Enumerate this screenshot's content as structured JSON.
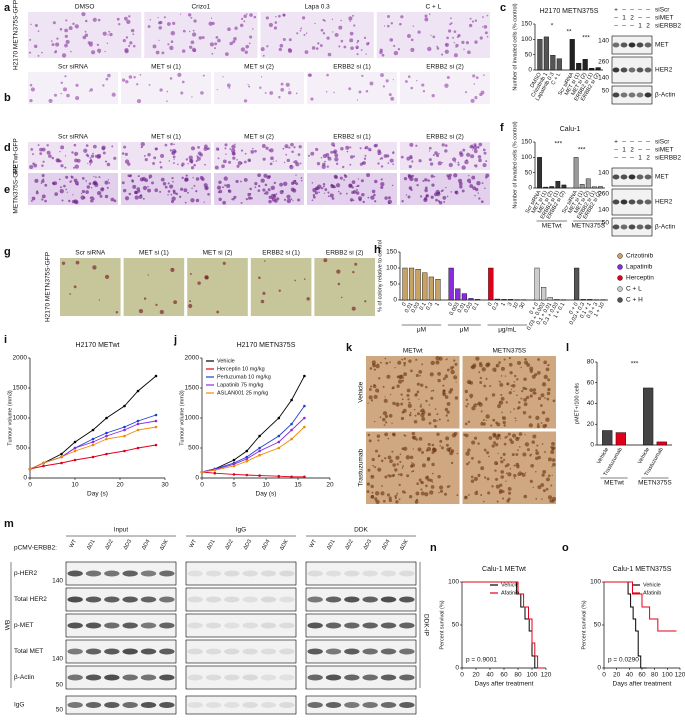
{
  "image_panels": [
    {
      "letter": "a",
      "labels": [
        "DMSO",
        "Crizo1",
        "Lapa 0.3",
        "C + L"
      ],
      "side": "H2170 METN375S-GFP"
    },
    {
      "letter": "b",
      "labels": [
        "Scr siRNA",
        "MET si (1)",
        "MET si (2)",
        "ERBB2 si (1)",
        "ERBB2 si (2)"
      ]
    },
    {
      "letter": "d",
      "labels": [
        "Scr siRNA",
        "MET si (1)",
        "MET si (2)",
        "ERBB2 si (1)",
        "ERBB2 si (2)"
      ],
      "side": "METwt-GFP"
    },
    {
      "letter": "e",
      "side": "METN375S-GFP"
    },
    {
      "letter": "g",
      "labels": [
        "Scr siRNA",
        "MET si (1)",
        "MET si (2)",
        "ERBB2 si (1)",
        "ERBB2 si (2)"
      ],
      "side": "H2170 METN375S-GFP"
    },
    {
      "letter": "k",
      "labels": [
        "METwt",
        "METN375S"
      ],
      "rows": [
        "Vehicle",
        "Trastuzumab"
      ]
    }
  ],
  "blots": [
    {
      "head": [
        {
          "label": "siScr",
          "lanes": [
            "+",
            "–",
            "–",
            "–",
            "–"
          ]
        },
        {
          "label": "siMET",
          "lanes": [
            "–",
            "1",
            "2",
            "–",
            "–"
          ]
        },
        {
          "label": "siERBB2",
          "lanes": [
            "–",
            "–",
            "–",
            "1",
            "2"
          ]
        }
      ],
      "bands": [
        {
          "name": "MET",
          "markers": [
            "140"
          ]
        },
        {
          "name": "HER2",
          "markers": [
            "260",
            "140"
          ]
        },
        {
          "name": "β-Actin",
          "markers": [
            "50"
          ]
        }
      ]
    },
    {
      "head": [
        {
          "label": "siScr",
          "lanes": [
            "+",
            "–",
            "–",
            "–",
            "–"
          ]
        },
        {
          "label": "siMET",
          "lanes": [
            "–",
            "1",
            "2",
            "–",
            "–"
          ]
        },
        {
          "label": "siERBB2",
          "lanes": [
            "–",
            "–",
            "–",
            "1",
            "2"
          ]
        }
      ],
      "bands": [
        {
          "name": "MET",
          "markers": [
            "140"
          ]
        },
        {
          "name": "HER2",
          "markers": [
            "260",
            "140"
          ]
        },
        {
          "name": "β-Actin",
          "markers": [
            "50"
          ]
        }
      ]
    }
  ],
  "blot_m": {
    "letter": "m",
    "header": "pCMV-ERBB2:",
    "groups": [
      "Input",
      "IgG",
      "DDK"
    ],
    "lanes": [
      "WT",
      "ΔD1",
      "ΔD2",
      "ΔD3",
      "ΔD4",
      "ΔDK"
    ],
    "bands": [
      {
        "name": "p-HER2",
        "markers": [
          "140"
        ]
      },
      {
        "name": "Total HER2",
        "markers": []
      },
      {
        "name": "p-MET",
        "markers": []
      },
      {
        "name": "Total MET",
        "markers": [
          "140"
        ]
      },
      {
        "name": "β-Actin",
        "markers": [
          "50"
        ]
      }
    ],
    "side": "WB",
    "ip": "DDK-IP",
    "bottom": {
      "name": "IgG",
      "markers": [
        "50"
      ]
    }
  },
  "chart_data": [
    {
      "type": "bar",
      "panel": "c",
      "title": "H2170 METN375S",
      "ylabel": "Number of invaded cells (% control)",
      "ylim": [
        0,
        150
      ],
      "yticks": [
        0,
        50,
        100,
        150
      ],
      "annotations": [
        "*",
        "**",
        "***"
      ],
      "groups": [
        {
          "color": "#555555",
          "categories": [
            "DMSO",
            "Crizotinib 1",
            "Lapatinib 0.3",
            "C + L"
          ],
          "values": [
            100,
            108,
            48,
            37
          ]
        },
        {
          "color": "#222222",
          "categories": [
            "Scr siRNA",
            "MET si (1)",
            "MET si (2)",
            "ERBB2 si (1)",
            "ERBB2 si (2)"
          ],
          "values": [
            100,
            22,
            35,
            6,
            8
          ]
        }
      ]
    },
    {
      "type": "bar",
      "panel": "f",
      "title": "Calu-1",
      "ylabel": "Number of invaded cells (% control)",
      "ylim": [
        0,
        150
      ],
      "yticks": [
        0,
        50,
        100,
        150
      ],
      "annotations": [
        "***",
        "***"
      ],
      "groups": [
        {
          "label": "METwt",
          "color": "#333333",
          "categories": [
            "Scr siRNA",
            "MET si (1)",
            "MET si (2)",
            "ERBB2 si (1)",
            "ERBB2 si (2)"
          ],
          "values": [
            100,
            3,
            5,
            22,
            10
          ]
        },
        {
          "label": "METN375S",
          "color": "#999999",
          "categories": [
            "Scr siRNA",
            "MET si (1)",
            "MET si (2)",
            "ERBB2 si (1)",
            "ERBB2 si (2)"
          ],
          "values": [
            100,
            12,
            30,
            4,
            5
          ]
        }
      ]
    },
    {
      "type": "bar",
      "panel": "h",
      "ylabel": "% of colony relative to control",
      "ylim": [
        0,
        150
      ],
      "yticks": [
        0,
        50,
        100,
        150
      ],
      "groups": [
        {
          "name": "Crizotinib",
          "label": "μM",
          "color": "#c8a165",
          "categories": [
            "0",
            "0.01",
            "0.03",
            "0.1",
            "0.3",
            "1"
          ],
          "values": [
            100,
            100,
            96,
            85,
            72,
            65
          ]
        },
        {
          "name": "Lapatinib",
          "label": "μM",
          "color": "#8a2be2",
          "categories": [
            "0",
            "0.003",
            "0.01",
            "0.03",
            "0.1"
          ],
          "values": [
            100,
            35,
            20,
            5,
            2
          ]
        },
        {
          "name": "Herceptin",
          "label": "μg/mL",
          "color": "#e0001a",
          "categories": [
            "0",
            "0.3",
            "1",
            "3",
            "10",
            "30"
          ],
          "values": [
            100,
            3,
            2,
            2,
            1,
            1
          ]
        },
        {
          "name": "C + L",
          "color": "#cccccc",
          "categories": [
            "0 + 0",
            "0.03 + 0.003",
            "0.1 + 0.01",
            "0.3 + 0.03",
            "1 + 0.1"
          ],
          "values": [
            100,
            40,
            8,
            2,
            1
          ]
        },
        {
          "name": "C + H",
          "color": "#555555",
          "categories": [
            "0 + 0",
            "0.03 + 0.3",
            "0.1 + 1",
            "0.3 + 3",
            "1 + 10"
          ],
          "values": [
            100,
            2,
            2,
            1,
            1
          ]
        }
      ]
    },
    {
      "type": "line",
      "panel": "i",
      "title": "H2170 METwt",
      "ylabel": "Tumour volume (mm3)",
      "xlabel": "Day (s)",
      "xlim": [
        0,
        30
      ],
      "xticks": [
        0,
        10,
        20,
        30
      ],
      "ylim": [
        0,
        2000
      ],
      "yticks": [
        0,
        500,
        1000,
        1500,
        2000
      ],
      "x": [
        0,
        3,
        7,
        10,
        14,
        17,
        21,
        24,
        28
      ],
      "series": [
        {
          "color": "#000000",
          "values": [
            150,
            250,
            400,
            600,
            800,
            1000,
            1200,
            1450,
            1700
          ]
        },
        {
          "color": "#e0001a",
          "values": [
            150,
            200,
            250,
            300,
            350,
            400,
            450,
            500,
            550
          ]
        },
        {
          "color": "#1f3fd6",
          "values": [
            150,
            250,
            350,
            500,
            650,
            750,
            850,
            950,
            1050
          ]
        },
        {
          "color": "#8a2be2",
          "values": [
            150,
            250,
            350,
            500,
            600,
            700,
            800,
            900,
            950
          ]
        },
        {
          "color": "#f08a00",
          "values": [
            150,
            250,
            350,
            450,
            550,
            650,
            700,
            800,
            850
          ]
        }
      ]
    },
    {
      "type": "line",
      "panel": "j",
      "title": "H2170 METN375S",
      "ylabel": "Tumour volume (mm3)",
      "xlabel": "Day (s)",
      "xlim": [
        0,
        20
      ],
      "xticks": [
        0,
        5,
        10,
        15,
        20
      ],
      "ylim": [
        0,
        2000
      ],
      "yticks": [
        0,
        500,
        1000,
        1500,
        2000
      ],
      "x": [
        0,
        2,
        5,
        7,
        9,
        12,
        14,
        16
      ],
      "series": [
        {
          "name": "Vehicle",
          "color": "#000000",
          "values": [
            100,
            150,
            300,
            450,
            700,
            1000,
            1300,
            1700
          ]
        },
        {
          "name": "Herceptin 10 mg/kg",
          "color": "#e0001a",
          "values": [
            100,
            80,
            60,
            50,
            40,
            30,
            20,
            20
          ]
        },
        {
          "name": "Pertuzumab 10 mg/kg",
          "color": "#1f3fd6",
          "values": [
            100,
            150,
            250,
            350,
            500,
            700,
            900,
            1200
          ]
        },
        {
          "name": "Lapatinib 75 mg/kg",
          "color": "#8a2be2",
          "values": [
            100,
            140,
            230,
            320,
            450,
            600,
            800,
            1000
          ]
        },
        {
          "name": "ASLAN001 25 mg/kg",
          "color": "#f08a00",
          "values": [
            100,
            130,
            200,
            280,
            380,
            500,
            650,
            850
          ]
        }
      ]
    },
    {
      "type": "bar",
      "panel": "l",
      "ylabel": "pMET+/100 cells",
      "ylim": [
        0,
        80
      ],
      "yticks": [
        0,
        20,
        40,
        60,
        80
      ],
      "annotations": [
        "***"
      ],
      "groups": [
        {
          "label": "METwt",
          "colors": [
            "#444444",
            "#e0001a"
          ],
          "categories": [
            "Vehicle",
            "Trastuzumab"
          ],
          "values": [
            14,
            12
          ]
        },
        {
          "label": "METN375S",
          "colors": [
            "#444444",
            "#e0001a"
          ],
          "categories": [
            "Vehicle",
            "Trastuzumab"
          ],
          "values": [
            55,
            3
          ]
        }
      ]
    },
    {
      "type": "step",
      "panel": "n",
      "title": "Calu-1 METwt",
      "ylabel": "Percent survival (%)",
      "xlabel": "Days after treatment",
      "xlim": [
        0,
        120
      ],
      "xticks": [
        0,
        20,
        40,
        60,
        80,
        100,
        120
      ],
      "ylim": [
        0,
        100
      ],
      "yticks": [
        0,
        50,
        100
      ],
      "annotations": [
        "p = 0.9001"
      ],
      "series": [
        {
          "name": "Vehicle",
          "color": "#000000",
          "x": [
            0,
            78,
            84,
            90,
            96,
            100,
            104
          ],
          "values": [
            100,
            86,
            71,
            57,
            43,
            14,
            0
          ]
        },
        {
          "name": "Afatinib",
          "color": "#e0001a",
          "x": [
            0,
            80,
            88,
            95,
            100,
            104,
            108
          ],
          "values": [
            100,
            86,
            71,
            57,
            29,
            14,
            0
          ]
        }
      ]
    },
    {
      "type": "step",
      "panel": "o",
      "title": "Calu-1 METN375S",
      "ylabel": "Percent survival (%)",
      "xlabel": "Days after treatment",
      "xlim": [
        0,
        120
      ],
      "xticks": [
        0,
        20,
        40,
        60,
        80,
        100,
        120
      ],
      "ylim": [
        0,
        100
      ],
      "yticks": [
        0,
        50,
        100
      ],
      "annotations": [
        "p = 0.0290"
      ],
      "series": [
        {
          "name": "Vehicle",
          "color": "#000000",
          "x": [
            0,
            38,
            42,
            46,
            50,
            54,
            58
          ],
          "values": [
            100,
            86,
            71,
            57,
            43,
            14,
            0
          ]
        },
        {
          "name": "Afatinib",
          "color": "#e0001a",
          "x": [
            0,
            45,
            60,
            72,
            85,
            100,
            105
          ],
          "values": [
            100,
            86,
            71,
            57,
            43,
            43,
            43
          ]
        }
      ]
    }
  ]
}
